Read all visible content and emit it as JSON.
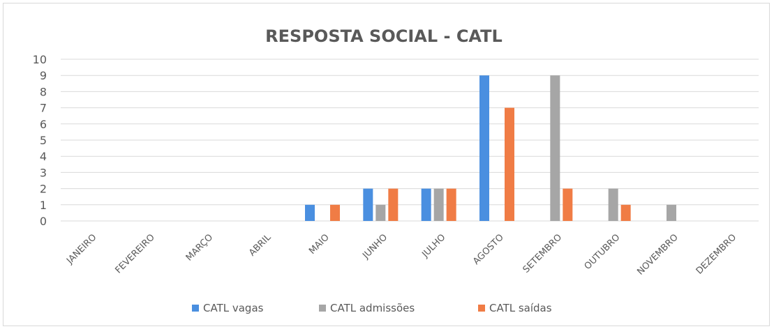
{
  "chart_data": {
    "type": "bar",
    "title": "RESPOSTA SOCIAL - CATL",
    "categories": [
      "JANEIRO",
      "FEVEREIRO",
      "MARÇO",
      "ABRIL",
      "MAIO",
      "JUNHO",
      "JULHO",
      "AGOSTO",
      "SETEMBRO",
      "OUTUBRO",
      "NOVEMBRO",
      "DEZEMBRO"
    ],
    "series": [
      {
        "name": "CATL vagas",
        "color": "#4a8fe0",
        "values": [
          0,
          0,
          0,
          0,
          1,
          2,
          2,
          9,
          0,
          0,
          0,
          0
        ]
      },
      {
        "name": "CATL admissões",
        "color": "#a6a6a6",
        "values": [
          0,
          0,
          0,
          0,
          0,
          1,
          2,
          0,
          9,
          2,
          1,
          0
        ]
      },
      {
        "name": "CATL saídas",
        "color": "#f07c45",
        "values": [
          0,
          0,
          0,
          0,
          1,
          2,
          2,
          7,
          2,
          1,
          0,
          0
        ]
      }
    ],
    "yticks": [
      0,
      1,
      2,
      3,
      4,
      5,
      6,
      7,
      8,
      9,
      10
    ],
    "ylim": [
      0,
      10
    ],
    "grid": true,
    "legend_position": "bottom"
  }
}
